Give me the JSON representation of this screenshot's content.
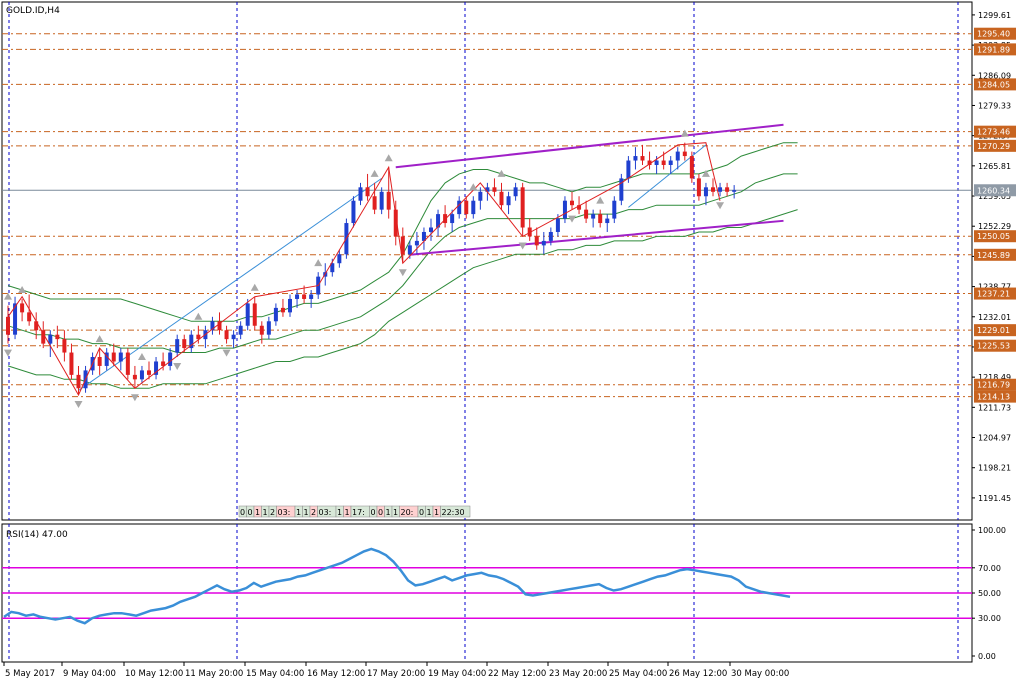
{
  "window": {
    "symbol_title": "GOLD.ID,H4"
  },
  "colors": {
    "background": "#ffffff",
    "frame": "#000000",
    "grid": "#0000cc",
    "bull_candle": "#1f3fcf",
    "bear_candle": "#e02020",
    "level_line": "#c86420",
    "level_label_bg": "#c86420",
    "channel": "#a020c8",
    "bollinger": "#2e8b3a",
    "zigzag": "#e02020",
    "trend_line": "#3a8fd8",
    "rsi_line": "#3a8fd8",
    "rsi_level": "#e000e0",
    "price_line": "#7a8a9a"
  },
  "chart_data": [
    {
      "type": "candlestick",
      "title": "GOLD.ID,H4",
      "x_ticks": [
        "5 May 2017",
        "9 May 04:00",
        "10 May 12:00",
        "11 May 20:00",
        "15 May 04:00",
        "16 May 12:00",
        "17 May 20:00",
        "19 May 04:00",
        "22 May 12:00",
        "23 May 20:00",
        "25 May 04:00",
        "26 May 12:00",
        "30 May 00:00"
      ],
      "y_ticks": [
        1299.61,
        1292.85,
        1286.09,
        1279.33,
        1272.57,
        1265.81,
        1259.05,
        1252.29,
        1245.53,
        1238.77,
        1232.01,
        1225.25,
        1218.49,
        1211.73,
        1204.97,
        1198.21,
        1191.45
      ],
      "ylim": [
        1186.5,
        1302.5
      ],
      "current_price": 1260.34,
      "horizontal_levels": [
        1295.4,
        1291.89,
        1284.05,
        1273.46,
        1270.29,
        1250.05,
        1245.89,
        1237.21,
        1229.01,
        1225.53,
        1216.79,
        1214.13
      ],
      "candles": [
        {
          "o": 1232.0,
          "h": 1234.5,
          "l": 1226.0,
          "c": 1228.0
        },
        {
          "o": 1228.0,
          "h": 1236.5,
          "l": 1227.0,
          "c": 1235.0
        },
        {
          "o": 1235.0,
          "h": 1236.0,
          "l": 1231.0,
          "c": 1233.0
        },
        {
          "o": 1233.0,
          "h": 1237.0,
          "l": 1230.0,
          "c": 1231.0
        },
        {
          "o": 1231.0,
          "h": 1233.0,
          "l": 1227.0,
          "c": 1229.0
        },
        {
          "o": 1229.0,
          "h": 1231.0,
          "l": 1225.0,
          "c": 1226.0
        },
        {
          "o": 1226.0,
          "h": 1229.0,
          "l": 1223.0,
          "c": 1228.0
        },
        {
          "o": 1228.0,
          "h": 1230.0,
          "l": 1225.0,
          "c": 1227.0
        },
        {
          "o": 1227.0,
          "h": 1229.0,
          "l": 1222.0,
          "c": 1224.0
        },
        {
          "o": 1224.0,
          "h": 1226.0,
          "l": 1218.0,
          "c": 1219.0
        },
        {
          "o": 1219.0,
          "h": 1221.0,
          "l": 1214.5,
          "c": 1216.0
        },
        {
          "o": 1216.0,
          "h": 1221.0,
          "l": 1215.0,
          "c": 1220.0
        },
        {
          "o": 1220.0,
          "h": 1224.0,
          "l": 1219.0,
          "c": 1223.0
        },
        {
          "o": 1223.0,
          "h": 1225.0,
          "l": 1219.0,
          "c": 1221.0
        },
        {
          "o": 1221.0,
          "h": 1225.0,
          "l": 1220.0,
          "c": 1224.0
        },
        {
          "o": 1224.0,
          "h": 1226.0,
          "l": 1221.0,
          "c": 1222.0
        },
        {
          "o": 1222.0,
          "h": 1225.0,
          "l": 1220.0,
          "c": 1224.0
        },
        {
          "o": 1224.0,
          "h": 1225.0,
          "l": 1218.0,
          "c": 1219.0
        },
        {
          "o": 1219.0,
          "h": 1221.0,
          "l": 1216.0,
          "c": 1218.0
        },
        {
          "o": 1218.0,
          "h": 1221.0,
          "l": 1217.0,
          "c": 1220.0
        },
        {
          "o": 1220.0,
          "h": 1222.0,
          "l": 1218.0,
          "c": 1219.0
        },
        {
          "o": 1219.0,
          "h": 1223.0,
          "l": 1218.0,
          "c": 1222.0
        },
        {
          "o": 1222.0,
          "h": 1224.0,
          "l": 1220.0,
          "c": 1221.0
        },
        {
          "o": 1221.0,
          "h": 1225.0,
          "l": 1220.0,
          "c": 1224.0
        },
        {
          "o": 1224.0,
          "h": 1228.0,
          "l": 1223.0,
          "c": 1227.0
        },
        {
          "o": 1227.0,
          "h": 1228.0,
          "l": 1224.0,
          "c": 1225.0
        },
        {
          "o": 1225.0,
          "h": 1229.0,
          "l": 1224.0,
          "c": 1228.0
        },
        {
          "o": 1228.0,
          "h": 1230.0,
          "l": 1226.0,
          "c": 1227.0
        },
        {
          "o": 1227.0,
          "h": 1230.0,
          "l": 1225.0,
          "c": 1229.0
        },
        {
          "o": 1229.0,
          "h": 1232.0,
          "l": 1228.0,
          "c": 1231.0
        },
        {
          "o": 1231.0,
          "h": 1233.0,
          "l": 1228.0,
          "c": 1229.0
        },
        {
          "o": 1229.0,
          "h": 1230.0,
          "l": 1226.0,
          "c": 1227.0
        },
        {
          "o": 1227.0,
          "h": 1229.0,
          "l": 1225.0,
          "c": 1228.0
        },
        {
          "o": 1228.0,
          "h": 1231.0,
          "l": 1227.0,
          "c": 1230.0
        },
        {
          "o": 1230.0,
          "h": 1236.0,
          "l": 1229.0,
          "c": 1235.0
        },
        {
          "o": 1235.0,
          "h": 1236.5,
          "l": 1229.0,
          "c": 1230.0
        },
        {
          "o": 1230.0,
          "h": 1231.0,
          "l": 1226.0,
          "c": 1228.0
        },
        {
          "o": 1228.0,
          "h": 1232.0,
          "l": 1227.0,
          "c": 1231.0
        },
        {
          "o": 1231.0,
          "h": 1235.0,
          "l": 1230.0,
          "c": 1234.0
        },
        {
          "o": 1234.0,
          "h": 1236.0,
          "l": 1232.0,
          "c": 1233.0
        },
        {
          "o": 1233.0,
          "h": 1237.0,
          "l": 1232.0,
          "c": 1236.0
        },
        {
          "o": 1236.0,
          "h": 1238.0,
          "l": 1234.0,
          "c": 1237.0
        },
        {
          "o": 1237.0,
          "h": 1239.0,
          "l": 1235.0,
          "c": 1236.0
        },
        {
          "o": 1236.0,
          "h": 1238.0,
          "l": 1234.0,
          "c": 1237.0
        },
        {
          "o": 1237.0,
          "h": 1242.0,
          "l": 1236.0,
          "c": 1241.0
        },
        {
          "o": 1241.0,
          "h": 1244.0,
          "l": 1239.0,
          "c": 1242.0
        },
        {
          "o": 1242.0,
          "h": 1245.0,
          "l": 1241.0,
          "c": 1244.0
        },
        {
          "o": 1244.0,
          "h": 1247.0,
          "l": 1243.0,
          "c": 1246.0
        },
        {
          "o": 1246.0,
          "h": 1254.0,
          "l": 1245.0,
          "c": 1253.0
        },
        {
          "o": 1253.0,
          "h": 1259.0,
          "l": 1252.0,
          "c": 1258.0
        },
        {
          "o": 1258.0,
          "h": 1262.0,
          "l": 1257.0,
          "c": 1261.0
        },
        {
          "o": 1261.0,
          "h": 1264.0,
          "l": 1258.0,
          "c": 1259.0
        },
        {
          "o": 1259.0,
          "h": 1262.0,
          "l": 1255.0,
          "c": 1256.0
        },
        {
          "o": 1256.0,
          "h": 1261.0,
          "l": 1255.0,
          "c": 1260.0
        },
        {
          "o": 1260.0,
          "h": 1265.5,
          "l": 1254.0,
          "c": 1256.0
        },
        {
          "o": 1256.0,
          "h": 1258.0,
          "l": 1248.0,
          "c": 1250.0
        },
        {
          "o": 1250.0,
          "h": 1252.0,
          "l": 1244.0,
          "c": 1246.0
        },
        {
          "o": 1246.0,
          "h": 1249.0,
          "l": 1245.0,
          "c": 1248.0
        },
        {
          "o": 1248.0,
          "h": 1251.0,
          "l": 1246.0,
          "c": 1249.0
        },
        {
          "o": 1249.0,
          "h": 1252.0,
          "l": 1247.0,
          "c": 1251.0
        },
        {
          "o": 1251.0,
          "h": 1254.0,
          "l": 1249.0,
          "c": 1252.0
        },
        {
          "o": 1252.0,
          "h": 1256.0,
          "l": 1250.0,
          "c": 1255.0
        },
        {
          "o": 1255.0,
          "h": 1257.0,
          "l": 1252.0,
          "c": 1253.0
        },
        {
          "o": 1253.0,
          "h": 1256.0,
          "l": 1251.0,
          "c": 1255.0
        },
        {
          "o": 1255.0,
          "h": 1259.0,
          "l": 1254.0,
          "c": 1258.0
        },
        {
          "o": 1258.0,
          "h": 1259.0,
          "l": 1254.0,
          "c": 1255.0
        },
        {
          "o": 1255.0,
          "h": 1259.0,
          "l": 1254.0,
          "c": 1258.0
        },
        {
          "o": 1258.0,
          "h": 1261.0,
          "l": 1256.0,
          "c": 1260.0
        },
        {
          "o": 1260.0,
          "h": 1262.0,
          "l": 1258.0,
          "c": 1261.0
        },
        {
          "o": 1261.0,
          "h": 1263.0,
          "l": 1259.0,
          "c": 1260.0
        },
        {
          "o": 1260.0,
          "h": 1262.0,
          "l": 1256.0,
          "c": 1257.0
        },
        {
          "o": 1257.0,
          "h": 1260.0,
          "l": 1255.0,
          "c": 1259.0
        },
        {
          "o": 1259.0,
          "h": 1262.0,
          "l": 1258.0,
          "c": 1261.0
        },
        {
          "o": 1261.0,
          "h": 1262.0,
          "l": 1250.0,
          "c": 1252.0
        },
        {
          "o": 1252.0,
          "h": 1254.0,
          "l": 1249.0,
          "c": 1250.0
        },
        {
          "o": 1250.0,
          "h": 1252.0,
          "l": 1247.0,
          "c": 1248.0
        },
        {
          "o": 1248.0,
          "h": 1251.0,
          "l": 1246.0,
          "c": 1249.0
        },
        {
          "o": 1249.0,
          "h": 1252.0,
          "l": 1248.0,
          "c": 1251.0
        },
        {
          "o": 1251.0,
          "h": 1255.0,
          "l": 1250.0,
          "c": 1254.0
        },
        {
          "o": 1254.0,
          "h": 1259.0,
          "l": 1253.0,
          "c": 1258.0
        },
        {
          "o": 1258.0,
          "h": 1260.0,
          "l": 1256.0,
          "c": 1257.0
        },
        {
          "o": 1257.0,
          "h": 1259.0,
          "l": 1255.0,
          "c": 1256.0
        },
        {
          "o": 1256.0,
          "h": 1258.0,
          "l": 1253.0,
          "c": 1254.0
        },
        {
          "o": 1254.0,
          "h": 1256.0,
          "l": 1252.0,
          "c": 1255.0
        },
        {
          "o": 1255.0,
          "h": 1256.0,
          "l": 1252.0,
          "c": 1253.0
        },
        {
          "o": 1253.0,
          "h": 1255.0,
          "l": 1251.0,
          "c": 1254.0
        },
        {
          "o": 1254.0,
          "h": 1259.0,
          "l": 1253.0,
          "c": 1258.0
        },
        {
          "o": 1258.0,
          "h": 1264.0,
          "l": 1257.0,
          "c": 1263.0
        },
        {
          "o": 1263.0,
          "h": 1268.0,
          "l": 1262.0,
          "c": 1267.0
        },
        {
          "o": 1267.0,
          "h": 1270.0,
          "l": 1265.0,
          "c": 1268.0
        },
        {
          "o": 1268.0,
          "h": 1270.5,
          "l": 1266.0,
          "c": 1267.0
        },
        {
          "o": 1267.0,
          "h": 1269.0,
          "l": 1265.0,
          "c": 1266.0
        },
        {
          "o": 1266.0,
          "h": 1268.0,
          "l": 1264.0,
          "c": 1267.0
        },
        {
          "o": 1267.0,
          "h": 1269.0,
          "l": 1265.0,
          "c": 1266.0
        },
        {
          "o": 1266.0,
          "h": 1268.0,
          "l": 1264.0,
          "c": 1267.0
        },
        {
          "o": 1267.0,
          "h": 1270.0,
          "l": 1265.0,
          "c": 1269.0
        },
        {
          "o": 1269.0,
          "h": 1271.0,
          "l": 1267.0,
          "c": 1268.0
        },
        {
          "o": 1268.0,
          "h": 1269.0,
          "l": 1262.0,
          "c": 1263.0
        },
        {
          "o": 1263.0,
          "h": 1264.0,
          "l": 1258.0,
          "c": 1259.0
        },
        {
          "o": 1259.0,
          "h": 1262.0,
          "l": 1257.0,
          "c": 1261.0
        },
        {
          "o": 1261.0,
          "h": 1263.0,
          "l": 1259.0,
          "c": 1260.0
        },
        {
          "o": 1260.0,
          "h": 1262.0,
          "l": 1259.0,
          "c": 1261.0
        },
        {
          "o": 1261.0,
          "h": 1262.0,
          "l": 1259.0,
          "c": 1260.0
        },
        {
          "o": 1260.0,
          "h": 1261.5,
          "l": 1258.5,
          "c": 1260.34
        }
      ],
      "bollinger_upper": [
        1239,
        1238,
        1237,
        1236,
        1236,
        1236,
        1236,
        1236,
        1236,
        1235,
        1234,
        1233,
        1232,
        1231,
        1231,
        1231,
        1231,
        1232,
        1232,
        1233,
        1234,
        1235,
        1235,
        1236,
        1237,
        1238,
        1240,
        1242,
        1246,
        1252,
        1258,
        1262,
        1264,
        1265,
        1265,
        1264,
        1263,
        1262,
        1262,
        1261,
        1260,
        1261,
        1261,
        1262,
        1263,
        1264,
        1264,
        1264,
        1264,
        1264,
        1265,
        1266,
        1268,
        1269,
        1270,
        1271,
        1271
      ],
      "bollinger_middle": [
        1230,
        1229,
        1228,
        1228,
        1227,
        1227,
        1226,
        1226,
        1225,
        1225,
        1225,
        1225,
        1224,
        1224,
        1224,
        1225,
        1225,
        1226,
        1227,
        1227,
        1228,
        1229,
        1229,
        1230,
        1231,
        1232,
        1234,
        1236,
        1239,
        1243,
        1247,
        1250,
        1252,
        1253,
        1254,
        1254,
        1254,
        1254,
        1254,
        1254,
        1254,
        1255,
        1255,
        1255,
        1256,
        1256,
        1257,
        1257,
        1257,
        1257,
        1258,
        1259,
        1260,
        1262,
        1263,
        1264,
        1264
      ],
      "bollinger_lower": [
        1221,
        1220,
        1219,
        1219,
        1218,
        1218,
        1217,
        1217,
        1216,
        1216,
        1216,
        1217,
        1217,
        1217,
        1217,
        1218,
        1219,
        1220,
        1221,
        1222,
        1222,
        1223,
        1223,
        1224,
        1225,
        1226,
        1228,
        1231,
        1233,
        1235,
        1237,
        1239,
        1241,
        1243,
        1244,
        1245,
        1246,
        1246,
        1246,
        1247,
        1247,
        1248,
        1248,
        1249,
        1249,
        1249,
        1250,
        1250,
        1250,
        1251,
        1251,
        1252,
        1252,
        1253,
        1254,
        1255,
        1256
      ],
      "zigzag": [
        {
          "i": 0,
          "p": 1232.0
        },
        {
          "i": 2,
          "p": 1236.5
        },
        {
          "i": 10,
          "p": 1214.5
        },
        {
          "i": 13,
          "p": 1225.0
        },
        {
          "i": 18,
          "p": 1216.0
        },
        {
          "i": 35,
          "p": 1236.5
        },
        {
          "i": 44,
          "p": 1239.0
        },
        {
          "i": 54,
          "p": 1265.5
        },
        {
          "i": 56,
          "p": 1244.0
        },
        {
          "i": 67,
          "p": 1262.0
        },
        {
          "i": 73,
          "p": 1250.0
        },
        {
          "i": 87,
          "p": 1262.0
        },
        {
          "i": 95,
          "p": 1270.5
        },
        {
          "i": 99,
          "p": 1271.0
        },
        {
          "i": 101,
          "p": 1258.0
        }
      ],
      "channel_upper": [
        {
          "i": 55,
          "p": 1265.5
        },
        {
          "i": 110,
          "p": 1275.0
        }
      ],
      "channel_lower": [
        {
          "i": 57,
          "p": 1245.9
        },
        {
          "i": 110,
          "p": 1253.5
        }
      ],
      "trend_lines": [
        [
          {
            "i": 10,
            "p": 1215.5
          },
          {
            "i": 53,
            "p": 1263.0
          }
        ],
        [
          {
            "i": 88,
            "p": 1256.5
          },
          {
            "i": 99,
            "p": 1270.5
          }
        ]
      ],
      "fractals_up": [
        0,
        2,
        13,
        19,
        27,
        35,
        44,
        52,
        54,
        66,
        70,
        84,
        96,
        99
      ],
      "fractals_down": [
        0,
        10,
        18,
        24,
        31,
        56,
        73,
        80,
        101
      ],
      "time_strip": [
        "0",
        "0",
        "1",
        "1",
        "2",
        "03:",
        "1",
        "1",
        "2",
        "03:",
        "1",
        "1",
        "17:",
        "0",
        "0",
        "1",
        "1",
        "20:",
        "0",
        "1",
        "1",
        "22:30"
      ]
    },
    {
      "type": "line",
      "title": "RSI(14) 47.00",
      "y_ticks": [
        100.0,
        70.0,
        50.0,
        30.0,
        0.0
      ],
      "ylim": [
        0,
        100
      ],
      "levels": [
        70,
        50,
        30
      ],
      "values": [
        31,
        35,
        34,
        32,
        33,
        31,
        30,
        29,
        30,
        31,
        28,
        26,
        30,
        32,
        33,
        34,
        34,
        33,
        32,
        34,
        36,
        37,
        38,
        40,
        43,
        45,
        47,
        50,
        53,
        56,
        53,
        51,
        52,
        54,
        58,
        55,
        57,
        59,
        60,
        61,
        63,
        64,
        66,
        68,
        70,
        72,
        74,
        77,
        80,
        83,
        85,
        83,
        80,
        75,
        68,
        60,
        56,
        57,
        59,
        61,
        63,
        60,
        62,
        64,
        65,
        66,
        64,
        63,
        61,
        58,
        55,
        49,
        48,
        49,
        50,
        51,
        52,
        53,
        54,
        55,
        56,
        57,
        54,
        52,
        53,
        55,
        57,
        59,
        61,
        63,
        64,
        66,
        68,
        69,
        68,
        67,
        66,
        65,
        64,
        63,
        60,
        55,
        53,
        51,
        50,
        49,
        48,
        47
      ]
    }
  ]
}
